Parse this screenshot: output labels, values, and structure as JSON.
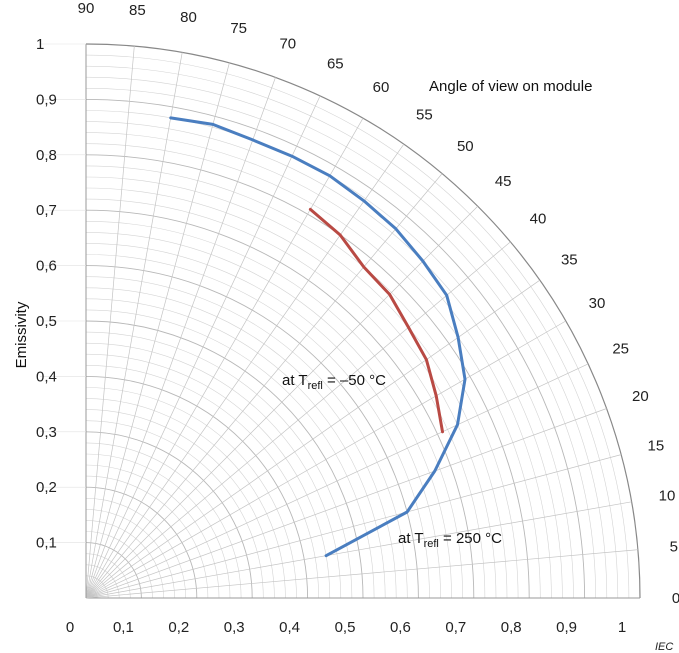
{
  "chart_data": {
    "type": "polar-line",
    "title": "",
    "angle_axis_title": "Angle of view on module",
    "ylabel": "Emissivity",
    "xlabel": "",
    "radial_range": [
      0,
      1
    ],
    "angle_range_deg": [
      0,
      90
    ],
    "x_ticks": [
      "0",
      "0,1",
      "0,2",
      "0,3",
      "0,4",
      "0,5",
      "0,6",
      "0,7",
      "0,8",
      "0,9",
      "1"
    ],
    "y_ticks": [
      "0,1",
      "0,2",
      "0,3",
      "0,4",
      "0,5",
      "0,6",
      "0,7",
      "0,8",
      "0,9",
      "1"
    ],
    "angle_ticks": [
      "0",
      "5",
      "10",
      "15",
      "20",
      "25",
      "30",
      "35",
      "40",
      "45",
      "50",
      "55",
      "60",
      "65",
      "70",
      "75",
      "80",
      "85",
      "90"
    ],
    "grid": true,
    "series": [
      {
        "label_main": "at T",
        "label_sub": "refl",
        "label_rest": " = 250 °C",
        "color": "#4a7ec0",
        "points": [
          {
            "angle": 10,
            "emissivity": 0.44
          },
          {
            "angle": 15,
            "emissivity": 0.6
          },
          {
            "angle": 20,
            "emissivity": 0.67
          },
          {
            "angle": 25,
            "emissivity": 0.74
          },
          {
            "angle": 30,
            "emissivity": 0.79
          },
          {
            "angle": 35,
            "emissivity": 0.82
          },
          {
            "angle": 40,
            "emissivity": 0.85
          },
          {
            "angle": 45,
            "emissivity": 0.86
          },
          {
            "angle": 50,
            "emissivity": 0.87
          },
          {
            "angle": 55,
            "emissivity": 0.875
          },
          {
            "angle": 60,
            "emissivity": 0.88
          },
          {
            "angle": 65,
            "emissivity": 0.88
          },
          {
            "angle": 70,
            "emissivity": 0.88
          },
          {
            "angle": 75,
            "emissivity": 0.885
          },
          {
            "angle": 80,
            "emissivity": 0.88
          }
        ]
      },
      {
        "label_main": "at T",
        "label_sub": "refl",
        "label_rest": " = –50 °C",
        "color": "#b94a44",
        "points": [
          {
            "angle": 25,
            "emissivity": 0.71
          },
          {
            "angle": 30,
            "emissivity": 0.73
          },
          {
            "angle": 35,
            "emissivity": 0.75
          },
          {
            "angle": 40,
            "emissivity": 0.76
          },
          {
            "angle": 45,
            "emissivity": 0.775
          },
          {
            "angle": 50,
            "emissivity": 0.78
          },
          {
            "angle": 55,
            "emissivity": 0.8
          },
          {
            "angle": 60,
            "emissivity": 0.81
          }
        ]
      }
    ]
  },
  "footer": {
    "source": "IEC"
  }
}
